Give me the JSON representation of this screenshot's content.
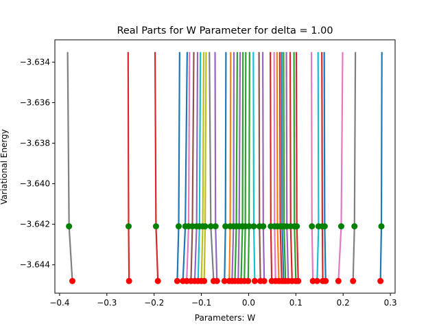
{
  "chart_data": {
    "type": "line",
    "title": "Real Parts for W Parameter for delta = 1.00",
    "xlabel": "Parameters: W",
    "ylabel": "Variational Energy",
    "xlim": [
      -0.41,
      0.31
    ],
    "ylim": [
      -3.6454,
      -3.6329
    ],
    "xticks": [
      -0.4,
      -0.3,
      -0.2,
      -0.1,
      0.0,
      0.1,
      0.2,
      0.3
    ],
    "xtick_labels": [
      "−0.4",
      "−0.3",
      "−0.2",
      "−0.1",
      "0.0",
      "0.1",
      "0.2",
      "0.3"
    ],
    "yticks": [
      -3.644,
      -3.642,
      -3.64,
      -3.638,
      -3.636,
      -3.634
    ],
    "ytick_labels": [
      "−3.644",
      "−3.642",
      "−3.640",
      "−3.638",
      "−3.636",
      "−3.634"
    ],
    "grid": false,
    "legend": "none",
    "energy_top": -3.6335,
    "energy_mid": -3.6421,
    "energy_bottom": -3.6448,
    "marker_colors": {
      "mid": "#008000",
      "bottom": "#ff0000"
    },
    "series": [
      {
        "color": "#7f7f7f",
        "w_top": -0.383,
        "w_mid": -0.38,
        "w_bottom": -0.373
      },
      {
        "color": "#d62728",
        "w_top": -0.255,
        "w_mid": -0.254,
        "w_bottom": -0.253
      },
      {
        "color": "#d62728",
        "w_top": -0.198,
        "w_mid": -0.196,
        "w_bottom": -0.192
      },
      {
        "color": "#1f77b4",
        "w_top": -0.146,
        "w_mid": -0.148,
        "w_bottom": -0.151
      },
      {
        "color": "#1f77b4",
        "w_top": -0.13,
        "w_mid": -0.134,
        "w_bottom": -0.139
      },
      {
        "color": "#e377c2",
        "w_top": -0.125,
        "w_mid": -0.127,
        "w_bottom": -0.131
      },
      {
        "color": "#8c564b",
        "w_top": -0.116,
        "w_mid": -0.119,
        "w_bottom": -0.122
      },
      {
        "color": "#9467bd",
        "w_top": -0.108,
        "w_mid": -0.11,
        "w_bottom": -0.114
      },
      {
        "color": "#17becf",
        "w_top": -0.102,
        "w_mid": -0.104,
        "w_bottom": -0.107
      },
      {
        "color": "#bcbd22",
        "w_top": -0.095,
        "w_mid": -0.097,
        "w_bottom": -0.1
      },
      {
        "color": "#bcbd22",
        "w_top": -0.09,
        "w_mid": -0.092,
        "w_bottom": -0.094
      },
      {
        "color": "#7f7f7f",
        "w_top": -0.083,
        "w_mid": -0.08,
        "w_bottom": -0.074
      },
      {
        "color": "#9467bd",
        "w_top": -0.071,
        "w_mid": -0.07,
        "w_bottom": -0.067
      },
      {
        "color": "#1f77b4",
        "w_top": -0.048,
        "w_mid": -0.049,
        "w_bottom": -0.051
      },
      {
        "color": "#ff7f0e",
        "w_top": -0.038,
        "w_mid": -0.039,
        "w_bottom": -0.041
      },
      {
        "color": "#9467bd",
        "w_top": -0.031,
        "w_mid": -0.032,
        "w_bottom": -0.035
      },
      {
        "color": "#2ca02c",
        "w_top": -0.024,
        "w_mid": -0.026,
        "w_bottom": -0.029
      },
      {
        "color": "#9467bd",
        "w_top": -0.018,
        "w_mid": -0.02,
        "w_bottom": -0.022
      },
      {
        "color": "#2ca02c",
        "w_top": -0.012,
        "w_mid": -0.013,
        "w_bottom": -0.016
      },
      {
        "color": "#2ca02c",
        "w_top": -0.006,
        "w_mid": -0.007,
        "w_bottom": -0.009
      },
      {
        "color": "#2ca02c",
        "w_top": 0.002,
        "w_mid": 0.001,
        "w_bottom": -0.001
      },
      {
        "color": "#17becf",
        "w_top": 0.01,
        "w_mid": 0.011,
        "w_bottom": 0.013
      },
      {
        "color": "#8c564b",
        "w_top": 0.022,
        "w_mid": 0.023,
        "w_bottom": 0.025
      },
      {
        "color": "#9467bd",
        "w_top": 0.03,
        "w_mid": 0.031,
        "w_bottom": 0.033
      },
      {
        "color": "#d62728",
        "w_top": 0.046,
        "w_mid": 0.047,
        "w_bottom": 0.049
      },
      {
        "color": "#e377c2",
        "w_top": 0.054,
        "w_mid": 0.055,
        "w_bottom": 0.057
      },
      {
        "color": "#ff7f0e",
        "w_top": 0.06,
        "w_mid": 0.061,
        "w_bottom": 0.064
      },
      {
        "color": "#d62728",
        "w_top": 0.066,
        "w_mid": 0.067,
        "w_bottom": 0.07
      },
      {
        "color": "#1f77b4",
        "w_top": 0.07,
        "w_mid": 0.071,
        "w_bottom": 0.074
      },
      {
        "color": "#2ca02c",
        "w_top": 0.074,
        "w_mid": 0.075,
        "w_bottom": 0.078
      },
      {
        "color": "#9467bd",
        "w_top": 0.08,
        "w_mid": 0.081,
        "w_bottom": 0.084
      },
      {
        "color": "#d62728",
        "w_top": 0.088,
        "w_mid": 0.089,
        "w_bottom": 0.092
      },
      {
        "color": "#2ca02c",
        "w_top": 0.096,
        "w_mid": 0.097,
        "w_bottom": 0.1
      },
      {
        "color": "#d62728",
        "w_top": 0.101,
        "w_mid": 0.102,
        "w_bottom": 0.105
      },
      {
        "color": "#e377c2",
        "w_top": 0.133,
        "w_mid": 0.134,
        "w_bottom": 0.136
      },
      {
        "color": "#17becf",
        "w_top": 0.147,
        "w_mid": 0.148,
        "w_bottom": 0.145
      },
      {
        "color": "#d62728",
        "w_top": 0.155,
        "w_mid": 0.156,
        "w_bottom": 0.157
      },
      {
        "color": "#1f77b4",
        "w_top": 0.16,
        "w_mid": 0.161,
        "w_bottom": 0.163
      },
      {
        "color": "#e377c2",
        "w_top": 0.199,
        "w_mid": 0.196,
        "w_bottom": 0.19
      },
      {
        "color": "#7f7f7f",
        "w_top": 0.226,
        "w_mid": 0.224,
        "w_bottom": 0.221
      },
      {
        "color": "#1f77b4",
        "w_top": 0.282,
        "w_mid": 0.281,
        "w_bottom": 0.279
      }
    ]
  }
}
